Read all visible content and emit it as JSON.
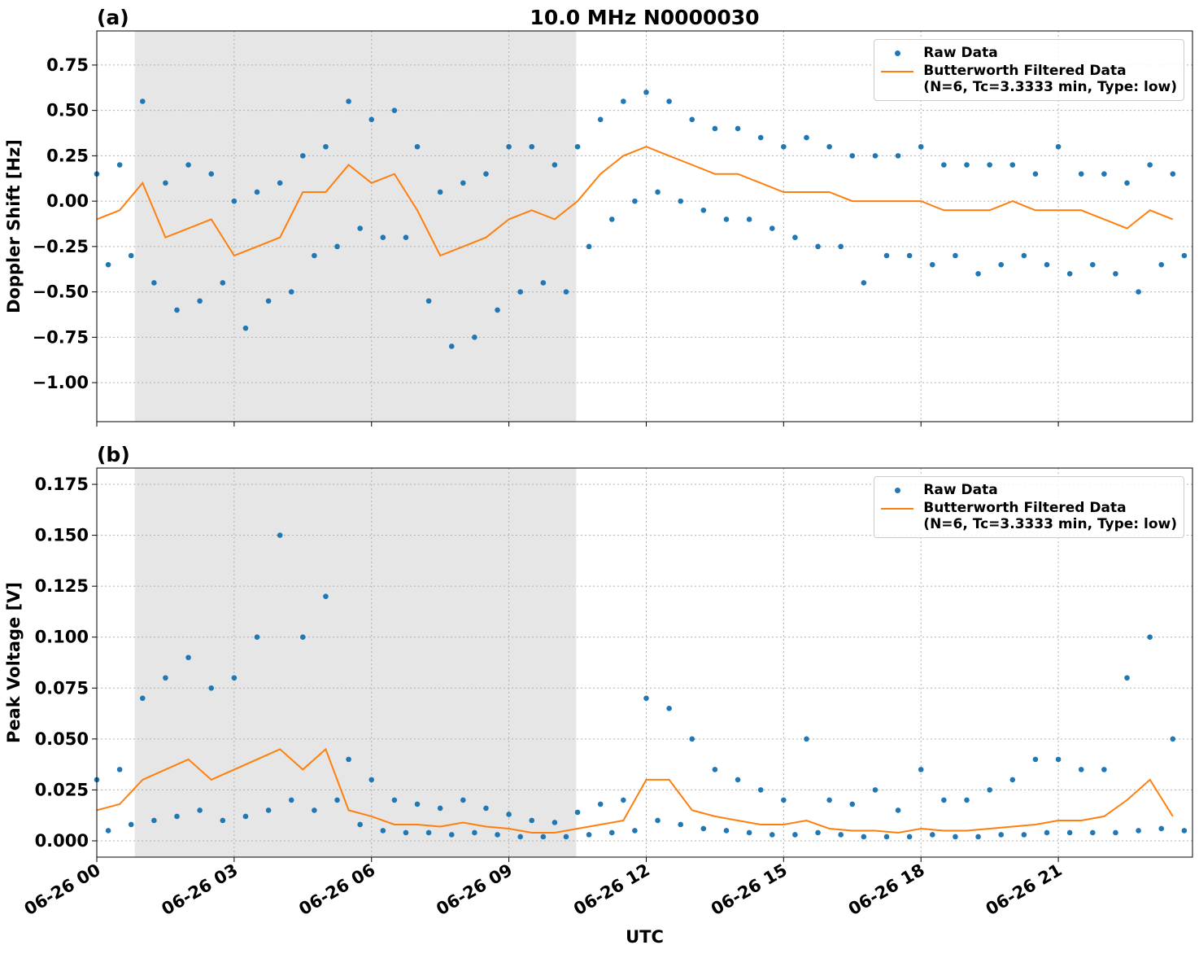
{
  "chart_data": [
    {
      "type": "scatter-line",
      "panel_label": "(a)",
      "title": "10.0 MHz N0000030",
      "ylabel": "Doppler Shift [Hz]",
      "xlim": [
        0,
        23.93
      ],
      "xticks": [
        0,
        3,
        6,
        9,
        12,
        15,
        18,
        21
      ],
      "ylim": [
        -1.215,
        0.938
      ],
      "yticks": [
        {
          "value": -1.0,
          "label": "−1.00"
        },
        {
          "value": -0.75,
          "label": "−0.75"
        },
        {
          "value": -0.5,
          "label": "−0.50"
        },
        {
          "value": -0.25,
          "label": "−0.25"
        },
        {
          "value": 0.0,
          "label": "0.00"
        },
        {
          "value": 0.25,
          "label": "0.25"
        },
        {
          "value": 0.5,
          "label": "0.50"
        },
        {
          "value": 0.75,
          "label": "0.75"
        }
      ],
      "grid": true,
      "legend": "upper right",
      "shaded_span": [
        0.83,
        10.47
      ],
      "shade_color": "#e6e6e6",
      "series": [
        {
          "name": "Raw Data",
          "kind": "points",
          "color": "#1f77b4",
          "x": [
            0,
            0.25,
            0.5,
            0.75,
            1,
            1.25,
            1.5,
            1.75,
            2,
            2.25,
            2.5,
            2.75,
            3,
            3.25,
            3.5,
            3.75,
            4,
            4.25,
            4.5,
            4.75,
            5,
            5.25,
            5.5,
            5.75,
            6,
            6.25,
            6.5,
            6.75,
            7,
            7.25,
            7.5,
            7.75,
            8,
            8.25,
            8.5,
            8.75,
            9,
            9.25,
            9.5,
            9.75,
            10,
            10.25,
            10.5,
            10.75,
            11,
            11.25,
            11.5,
            11.75,
            12,
            12.25,
            12.5,
            12.75,
            13,
            13.25,
            13.5,
            13.75,
            14,
            14.25,
            14.5,
            14.75,
            15,
            15.25,
            15.5,
            15.75,
            16,
            16.25,
            16.5,
            16.75,
            17,
            17.25,
            17.5,
            17.75,
            18,
            18.25,
            18.5,
            18.75,
            19,
            19.25,
            19.5,
            19.75,
            20,
            20.25,
            20.5,
            20.75,
            21,
            21.25,
            21.5,
            21.75,
            22,
            22.25,
            22.5,
            22.75,
            23,
            23.25,
            23.5,
            23.75
          ],
          "values": [
            0.15,
            -0.35,
            0.2,
            -0.3,
            0.55,
            -0.45,
            0.1,
            -0.6,
            0.2,
            -0.55,
            0.15,
            -0.45,
            0.0,
            -0.7,
            0.05,
            -0.55,
            0.1,
            -0.5,
            0.25,
            -0.3,
            0.3,
            -0.25,
            0.55,
            -0.15,
            0.45,
            -0.2,
            0.5,
            -0.2,
            0.3,
            -0.55,
            0.05,
            -0.8,
            0.1,
            -0.75,
            0.15,
            -0.6,
            0.3,
            -0.5,
            0.3,
            -0.45,
            0.2,
            -0.5,
            0.3,
            -0.25,
            0.45,
            -0.1,
            0.55,
            0.0,
            0.6,
            0.05,
            0.55,
            0.0,
            0.45,
            -0.05,
            0.4,
            -0.1,
            0.4,
            -0.1,
            0.35,
            -0.15,
            0.3,
            -0.2,
            0.35,
            -0.25,
            0.3,
            -0.25,
            0.25,
            -0.45,
            0.25,
            -0.3,
            0.25,
            -0.3,
            0.3,
            -0.35,
            0.2,
            -0.3,
            0.2,
            -0.4,
            0.2,
            -0.35,
            0.2,
            -0.3,
            0.15,
            -0.35,
            0.3,
            -0.4,
            0.15,
            -0.35,
            0.15,
            -0.4,
            0.1,
            -0.5,
            0.2,
            -0.35,
            0.15,
            -0.3
          ]
        },
        {
          "name": "Butterworth Filtered Data\n(N=6, Tc=3.3333 min, Type: low)",
          "kind": "line",
          "color": "#ff7f0e",
          "x": [
            0,
            0.5,
            1,
            1.5,
            2,
            2.5,
            3,
            3.5,
            4,
            4.5,
            5,
            5.5,
            6,
            6.5,
            7,
            7.5,
            8,
            8.5,
            9,
            9.5,
            10,
            10.5,
            11,
            11.5,
            12,
            12.5,
            13,
            13.5,
            14,
            14.5,
            15,
            15.5,
            16,
            16.5,
            17,
            17.5,
            18,
            18.5,
            19,
            19.5,
            20,
            20.5,
            21,
            21.5,
            22,
            22.5,
            23,
            23.5
          ],
          "values": [
            -0.1,
            -0.05,
            0.1,
            -0.2,
            -0.15,
            -0.1,
            -0.3,
            -0.25,
            -0.2,
            0.05,
            0.05,
            0.2,
            0.1,
            0.15,
            -0.05,
            -0.3,
            -0.25,
            -0.2,
            -0.1,
            -0.05,
            -0.1,
            0.0,
            0.15,
            0.25,
            0.3,
            0.25,
            0.2,
            0.15,
            0.15,
            0.1,
            0.05,
            0.05,
            0.05,
            0.0,
            0.0,
            0.0,
            0.0,
            -0.05,
            -0.05,
            -0.05,
            0.0,
            -0.05,
            -0.05,
            -0.05,
            -0.1,
            -0.15,
            -0.05,
            -0.1
          ]
        }
      ]
    },
    {
      "type": "scatter-line",
      "panel_label": "(b)",
      "ylabel": "Peak Voltage [V]",
      "xlabel": "UTC",
      "xlim": [
        0,
        23.93
      ],
      "xticks": [
        {
          "value": 0,
          "label": "06-26 00"
        },
        {
          "value": 3,
          "label": "06-26 03"
        },
        {
          "value": 6,
          "label": "06-26 06"
        },
        {
          "value": 9,
          "label": "06-26 09"
        },
        {
          "value": 12,
          "label": "06-26 12"
        },
        {
          "value": 15,
          "label": "06-26 15"
        },
        {
          "value": 18,
          "label": "06-26 18"
        },
        {
          "value": 21,
          "label": "06-26 21"
        }
      ],
      "ylim": [
        -0.008,
        0.183
      ],
      "yticks": [
        {
          "value": 0.0,
          "label": "0.000"
        },
        {
          "value": 0.025,
          "label": "0.025"
        },
        {
          "value": 0.05,
          "label": "0.050"
        },
        {
          "value": 0.075,
          "label": "0.075"
        },
        {
          "value": 0.1,
          "label": "0.100"
        },
        {
          "value": 0.125,
          "label": "0.125"
        },
        {
          "value": 0.15,
          "label": "0.150"
        },
        {
          "value": 0.175,
          "label": "0.175"
        }
      ],
      "grid": true,
      "legend": "upper right",
      "shaded_span": [
        0.83,
        10.47
      ],
      "shade_color": "#e6e6e6",
      "series": [
        {
          "name": "Raw Data",
          "kind": "points",
          "color": "#1f77b4",
          "x": [
            0,
            0.25,
            0.5,
            0.75,
            1,
            1.25,
            1.5,
            1.75,
            2,
            2.25,
            2.5,
            2.75,
            3,
            3.25,
            3.5,
            3.75,
            4,
            4.25,
            4.5,
            4.75,
            5,
            5.25,
            5.5,
            5.75,
            6,
            6.25,
            6.5,
            6.75,
            7,
            7.25,
            7.5,
            7.75,
            8,
            8.25,
            8.5,
            8.75,
            9,
            9.25,
            9.5,
            9.75,
            10,
            10.25,
            10.5,
            10.75,
            11,
            11.25,
            11.5,
            11.75,
            12,
            12.25,
            12.5,
            12.75,
            13,
            13.25,
            13.5,
            13.75,
            14,
            14.25,
            14.5,
            14.75,
            15,
            15.25,
            15.5,
            15.75,
            16,
            16.25,
            16.5,
            16.75,
            17,
            17.25,
            17.5,
            17.75,
            18,
            18.25,
            18.5,
            18.75,
            19,
            19.25,
            19.5,
            19.75,
            20,
            20.25,
            20.5,
            20.75,
            21,
            21.25,
            21.5,
            21.75,
            22,
            22.25,
            22.5,
            22.75,
            23,
            23.25,
            23.5,
            23.75
          ],
          "values": [
            0.03,
            0.005,
            0.035,
            0.008,
            0.07,
            0.01,
            0.08,
            0.012,
            0.09,
            0.015,
            0.075,
            0.01,
            0.08,
            0.012,
            0.1,
            0.015,
            0.15,
            0.02,
            0.1,
            0.015,
            0.12,
            0.02,
            0.04,
            0.008,
            0.03,
            0.005,
            0.02,
            0.004,
            0.018,
            0.004,
            0.016,
            0.003,
            0.02,
            0.004,
            0.016,
            0.003,
            0.013,
            0.002,
            0.01,
            0.002,
            0.009,
            0.002,
            0.014,
            0.003,
            0.018,
            0.004,
            0.02,
            0.005,
            0.07,
            0.01,
            0.065,
            0.008,
            0.05,
            0.006,
            0.035,
            0.005,
            0.03,
            0.004,
            0.025,
            0.003,
            0.02,
            0.003,
            0.05,
            0.004,
            0.02,
            0.003,
            0.018,
            0.002,
            0.025,
            0.002,
            0.015,
            0.002,
            0.035,
            0.003,
            0.02,
            0.002,
            0.02,
            0.002,
            0.025,
            0.003,
            0.03,
            0.003,
            0.04,
            0.004,
            0.04,
            0.004,
            0.035,
            0.004,
            0.035,
            0.004,
            0.08,
            0.005,
            0.1,
            0.006,
            0.05,
            0.005
          ]
        },
        {
          "name": "Butterworth Filtered Data\n(N=6, Tc=3.3333 min, Type: low)",
          "kind": "line",
          "color": "#ff7f0e",
          "x": [
            0,
            0.5,
            1,
            1.5,
            2,
            2.5,
            3,
            3.5,
            4,
            4.5,
            5,
            5.5,
            6,
            6.5,
            7,
            7.5,
            8,
            8.5,
            9,
            9.5,
            10,
            10.5,
            11,
            11.5,
            12,
            12.5,
            13,
            13.5,
            14,
            14.5,
            15,
            15.5,
            16,
            16.5,
            17,
            17.5,
            18,
            18.5,
            19,
            19.5,
            20,
            20.5,
            21,
            21.5,
            22,
            22.5,
            23,
            23.5
          ],
          "values": [
            0.015,
            0.018,
            0.03,
            0.035,
            0.04,
            0.03,
            0.035,
            0.04,
            0.045,
            0.035,
            0.045,
            0.015,
            0.012,
            0.008,
            0.008,
            0.007,
            0.009,
            0.007,
            0.006,
            0.004,
            0.004,
            0.006,
            0.008,
            0.01,
            0.03,
            0.03,
            0.015,
            0.012,
            0.01,
            0.008,
            0.008,
            0.01,
            0.006,
            0.005,
            0.005,
            0.004,
            0.006,
            0.005,
            0.005,
            0.006,
            0.007,
            0.008,
            0.01,
            0.01,
            0.012,
            0.02,
            0.03,
            0.012
          ]
        }
      ]
    }
  ]
}
